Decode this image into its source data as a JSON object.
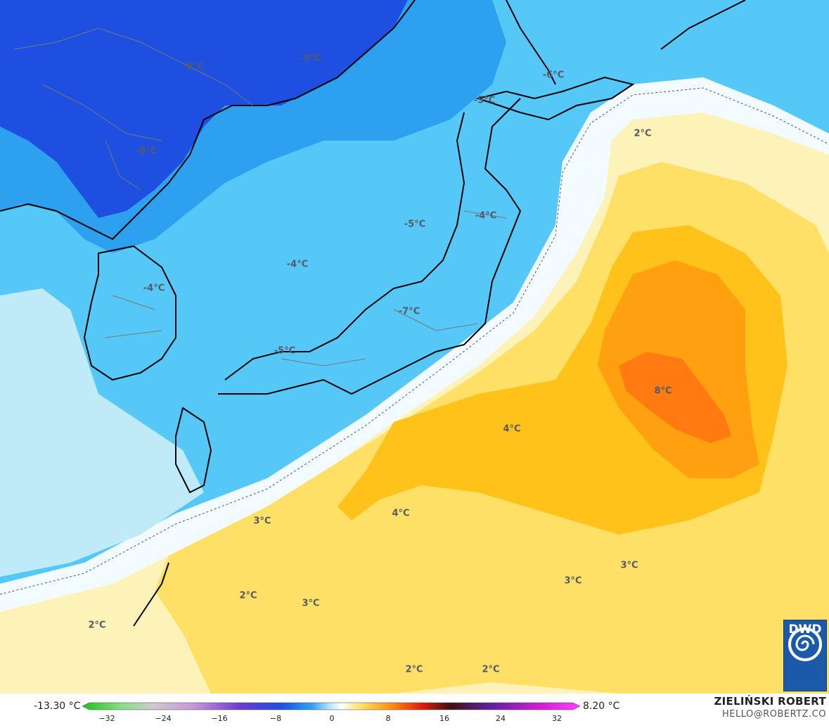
{
  "map": {
    "temperature_labels": [
      {
        "text": "-9°C"
      },
      {
        "text": "-8°C"
      },
      {
        "text": "-8°C"
      },
      {
        "text": "-6°C"
      },
      {
        "text": "-5°C"
      },
      {
        "text": "2°C"
      },
      {
        "text": "-5°C"
      },
      {
        "text": "-4°C"
      },
      {
        "text": "-4°C"
      },
      {
        "text": "-4°C"
      },
      {
        "text": "-7°C"
      },
      {
        "text": "-5°C"
      },
      {
        "text": "8°C"
      },
      {
        "text": "4°C"
      },
      {
        "text": "4°C"
      },
      {
        "text": "3°C"
      },
      {
        "text": "3°C"
      },
      {
        "text": "3°C"
      },
      {
        "text": "2°C"
      },
      {
        "text": "3°C"
      },
      {
        "text": "2°C"
      },
      {
        "text": "2°C"
      },
      {
        "text": "2°C"
      }
    ]
  },
  "legend": {
    "min_label": "-13.30 °C",
    "max_label": "8.20 °C",
    "ticks": [
      "−32",
      "−24",
      "−16",
      "−8",
      "0",
      "8",
      "16",
      "24",
      "32"
    ]
  },
  "credits": {
    "name": "ZIELIŃSKI ROBERT",
    "email": "HELLO@ROBERTZ.CO"
  },
  "logo": {
    "text": "DWD"
  },
  "colors": {
    "deep_blue": "#1e4fe0",
    "mid_blue": "#2ea0f0",
    "light_blue": "#55c8f8",
    "pale_blue": "#bfeaf8",
    "white_zone": "#f2fbff",
    "pale_yellow": "#fdf3b8",
    "yellow": "#ffe066",
    "gold": "#ffc21a",
    "orange": "#ffa010",
    "dark_orange": "#ff7a10",
    "coastline": "#000000",
    "borders": "#777777"
  }
}
